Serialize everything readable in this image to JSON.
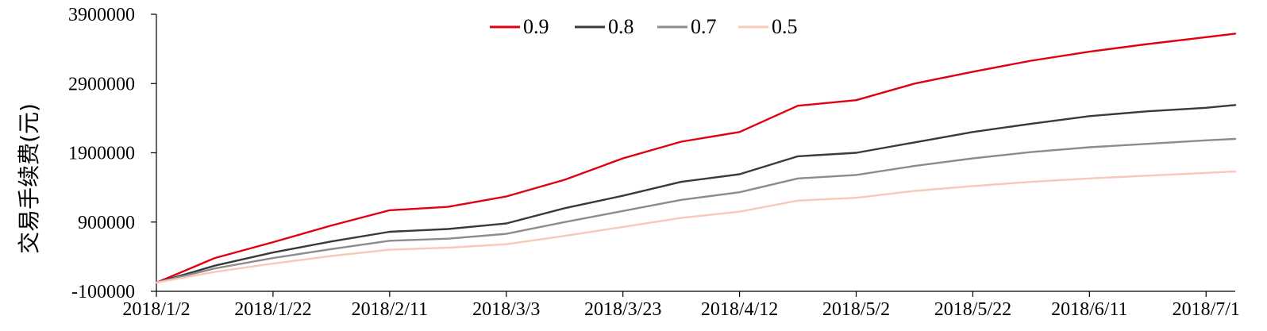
{
  "chart_data": {
    "type": "line",
    "title": "",
    "xlabel": "",
    "ylabel": "交易手续费(元)",
    "x_tick_labels": [
      "2018/1/2",
      "2018/1/22",
      "2018/2/11",
      "2018/3/3",
      "2018/3/23",
      "2018/4/12",
      "2018/5/2",
      "2018/5/22",
      "2018/6/11",
      "2018/7/1"
    ],
    "y_tick_labels": [
      "-100000",
      "900000",
      "1900000",
      "2900000",
      "3900000"
    ],
    "ylim": [
      -100000,
      3900000
    ],
    "xlim": [
      "2018/1/2",
      "2018/7/6"
    ],
    "grid": false,
    "legend_position": "top-center",
    "x": [
      "2018/1/2",
      "2018/1/12",
      "2018/1/22",
      "2018/2/1",
      "2018/2/11",
      "2018/2/21",
      "2018/3/3",
      "2018/3/13",
      "2018/3/23",
      "2018/4/2",
      "2018/4/12",
      "2018/4/22",
      "2018/5/2",
      "2018/5/12",
      "2018/5/22",
      "2018/6/1",
      "2018/6/11",
      "2018/6/21",
      "2018/7/1",
      "2018/7/6"
    ],
    "series": [
      {
        "name": "0.9",
        "color": "#e00010",
        "values": [
          25000,
          380000,
          610000,
          850000,
          1070000,
          1120000,
          1270000,
          1510000,
          1820000,
          2060000,
          2200000,
          2580000,
          2660000,
          2900000,
          3070000,
          3230000,
          3360000,
          3470000,
          3570000,
          3620000
        ]
      },
      {
        "name": "0.8",
        "color": "#3a3a3a",
        "values": [
          25000,
          270000,
          460000,
          620000,
          760000,
          800000,
          880000,
          1100000,
          1280000,
          1480000,
          1590000,
          1850000,
          1900000,
          2050000,
          2200000,
          2320000,
          2430000,
          2500000,
          2550000,
          2590000
        ]
      },
      {
        "name": "0.7",
        "color": "#8c8c8c",
        "values": [
          25000,
          230000,
          380000,
          510000,
          630000,
          660000,
          730000,
          900000,
          1060000,
          1220000,
          1330000,
          1530000,
          1580000,
          1710000,
          1820000,
          1910000,
          1980000,
          2030000,
          2080000,
          2100000
        ]
      },
      {
        "name": "0.5",
        "color": "#f8c8b8",
        "values": [
          25000,
          180000,
          300000,
          410000,
          500000,
          530000,
          580000,
          700000,
          830000,
          960000,
          1050000,
          1210000,
          1250000,
          1350000,
          1420000,
          1480000,
          1530000,
          1570000,
          1610000,
          1630000
        ]
      }
    ]
  }
}
